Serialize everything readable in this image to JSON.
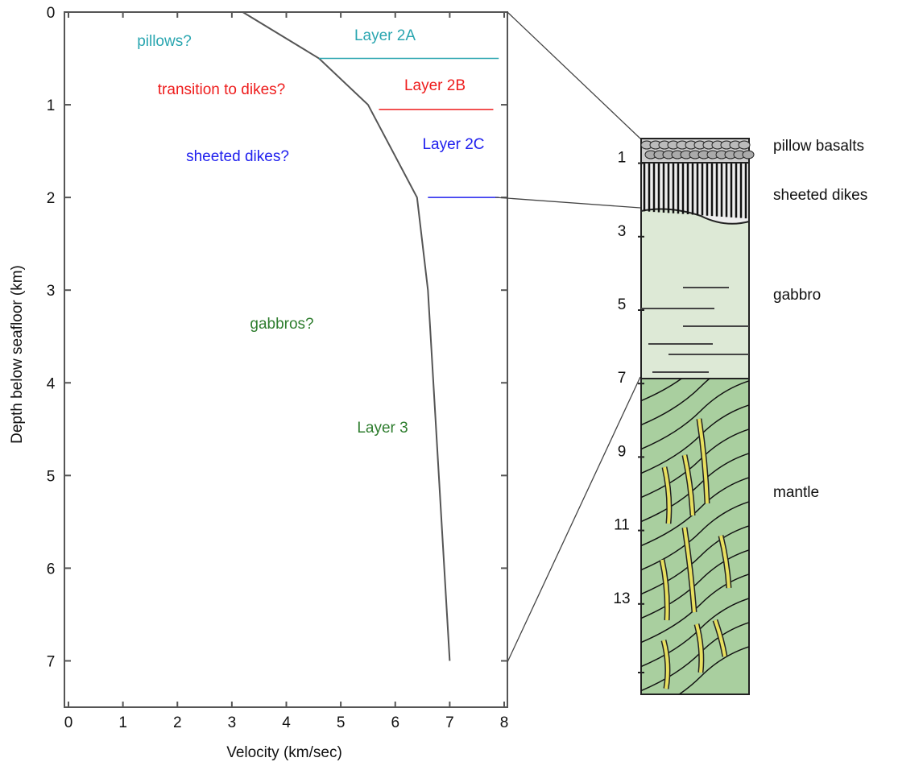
{
  "chart_data": {
    "type": "line",
    "xlabel": "Velocity (km/sec)",
    "ylabel": "Depth below seafloor (km)",
    "xlim": [
      0,
      8
    ],
    "xticks": [
      0,
      1,
      2,
      3,
      4,
      5,
      6,
      7,
      8
    ],
    "ylim": [
      0,
      7.5
    ],
    "yticks": [
      0,
      1,
      2,
      3,
      4,
      5,
      6,
      7
    ],
    "invert_y": true,
    "series": [
      {
        "color": "#555555",
        "x": [
          3.2,
          4.6,
          5.5,
          6.4,
          6.6,
          7.0
        ],
        "values": [
          0,
          0.5,
          1.0,
          2.0,
          3.0,
          7.0
        ]
      }
    ],
    "layer_lines": [
      {
        "label": "Layer 2A",
        "color": "#2aa6b0",
        "depth": 0.5,
        "from": 4.6,
        "to": 7.9
      },
      {
        "label": "Layer 2B",
        "color": "#ee1c1c",
        "depth": 1.05,
        "from": 5.7,
        "to": 7.8
      },
      {
        "label": "Layer 2C",
        "color": "#2020ee",
        "depth": 2.0,
        "from": 6.6,
        "to": 7.9
      }
    ],
    "annotations": [
      {
        "text": "Layer 3",
        "color": "#2e7d2e"
      },
      {
        "text": "pillows?",
        "color": "#2aa6b0"
      },
      {
        "text": "transition to dikes?",
        "color": "#ee1c1c"
      },
      {
        "text": "sheeted dikes?",
        "color": "#2020ee"
      },
      {
        "text": "gabbros?",
        "color": "#2e7d2e"
      }
    ]
  },
  "diagram": {
    "depth_ticks": [
      1,
      3,
      5,
      7,
      9,
      11,
      13
    ],
    "labels": [
      "pillow basalts",
      "sheeted dikes",
      "gabbro",
      "mantle"
    ]
  }
}
